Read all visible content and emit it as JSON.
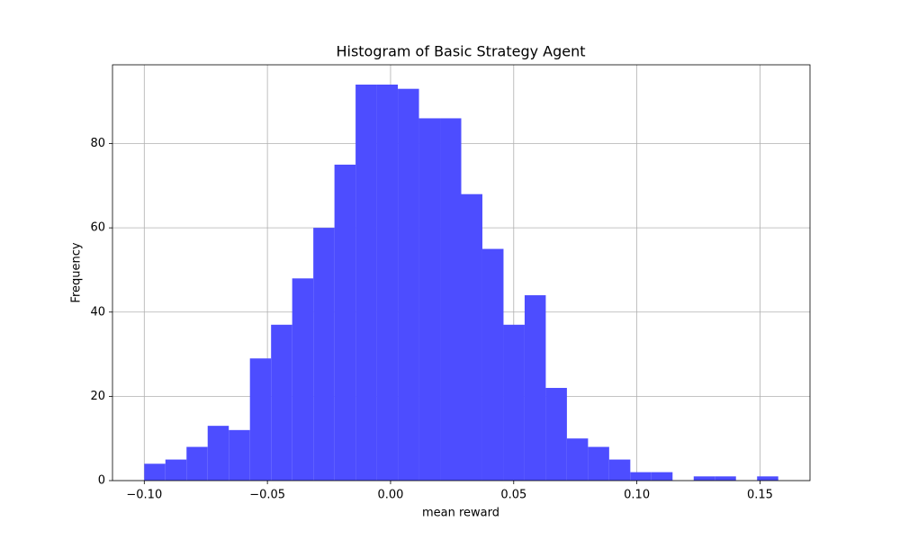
{
  "chart_data": {
    "type": "histogram",
    "title": "Histogram of Basic Strategy Agent",
    "x_label": "mean reward",
    "y_label": "Frequency",
    "bins": [
      -0.1,
      -0.09142,
      -0.08284,
      -0.07426,
      -0.06568,
      -0.0571,
      -0.04852,
      -0.03994,
      -0.03136,
      -0.02278,
      -0.0142,
      -0.00562,
      0.00296,
      0.01154,
      0.02012,
      0.0287,
      0.03728,
      0.04586,
      0.05444,
      0.06302,
      0.0716,
      0.08018,
      0.08876,
      0.09734,
      0.10592,
      0.1145,
      0.12308,
      0.13166,
      0.14024,
      0.14882,
      0.1574
    ],
    "values": [
      4,
      5,
      8,
      13,
      12,
      29,
      37,
      48,
      60,
      75,
      94,
      94,
      93,
      86,
      86,
      68,
      55,
      37,
      44,
      22,
      10,
      8,
      5,
      2,
      2,
      0,
      1,
      1,
      0,
      1
    ],
    "color": "#4d4dff",
    "xlim": [
      -0.1129,
      0.1703
    ],
    "ylim": [
      0,
      98.7
    ],
    "xticks": [
      {
        "value": -0.1,
        "label": "−0.10"
      },
      {
        "value": -0.05,
        "label": "−0.05"
      },
      {
        "value": 0,
        "label": "0.00"
      },
      {
        "value": 0.05,
        "label": "0.05"
      },
      {
        "value": 0.1,
        "label": "0.10"
      },
      {
        "value": 0.15,
        "label": "0.15"
      }
    ],
    "yticks": [
      0,
      20,
      40,
      60,
      80
    ],
    "grid": true
  }
}
